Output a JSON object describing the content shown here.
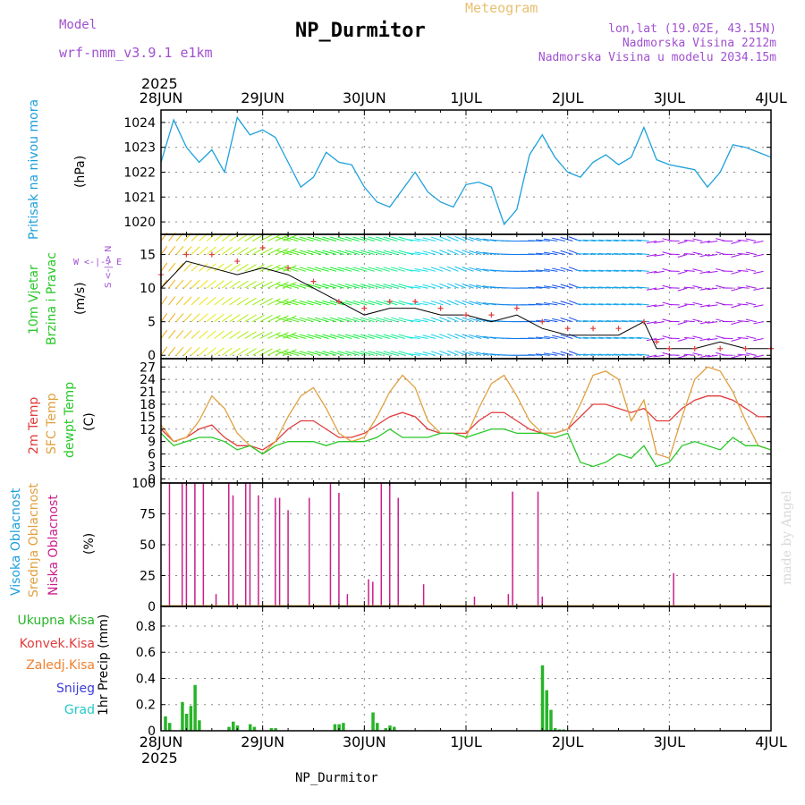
{
  "header": {
    "model_label": "Model",
    "model_name": "wrf-nmm_v3.9.1 e1km",
    "station": "NP_Durmitor",
    "product": "Meteogram",
    "lonlat": "lon,lat (19.02E, 43.15N)",
    "elevation": "Nadmorska Visina 2212m",
    "model_elevation": "Nadmorska Visina u modelu 2034.15m"
  },
  "footer": {
    "station": "NP_Durmitor",
    "credit": "made by Angel"
  },
  "time_axis": {
    "year": "2025",
    "ticks": [
      "28JUN",
      "29JUN",
      "30JUN",
      "1JUL",
      "2JUL",
      "3JUL",
      "4JUL"
    ]
  },
  "panel_labels": {
    "pressure": {
      "name": "Pritisak na nivou mora",
      "unit": "(hPa)"
    },
    "wind": {
      "name1": "10m Vjetar",
      "name2": "Brzina i Pravac",
      "unit": "(m/s)",
      "compass_h": "W <-|-> E",
      "compass_v": "S <-|-> N"
    },
    "temp": {
      "l1": "2m Temp",
      "l2": "SFC Temp",
      "l3": "dewpt Temp",
      "unit": "(C)"
    },
    "cloud": {
      "l1": "Visoka Oblacnost",
      "l2": "Srednja Oblacnost",
      "l3": "Niska Oblacnost",
      "unit": "(%)"
    },
    "precip": {
      "unit": "1hr Precip (mm)",
      "legend": [
        "Ukupna Kisa",
        "Konvek.Kisa",
        "Zaledj.Kisa",
        "Snijeg",
        "Grad"
      ]
    }
  },
  "colors": {
    "pressure": "#1ea0dc",
    "t2m": "#e03c3c",
    "tsfc": "#e0a040",
    "dewpt": "#28c828",
    "low_cloud": "#c81e8c",
    "precip": "#28b428",
    "gust_max": "#e03c3c",
    "wind_speed": "#000000",
    "legend": [
      "#28b428",
      "#e03c3c",
      "#f08030",
      "#3c3cdc",
      "#28c8c8"
    ]
  },
  "chart_data": [
    {
      "type": "line",
      "ylabel": "(hPa)",
      "yticks": [
        1020,
        1021,
        1022,
        1023,
        1024
      ],
      "ylim": [
        1019.5,
        1024.5
      ],
      "x_hours": [
        0,
        3,
        6,
        9,
        12,
        15,
        18,
        21,
        24,
        27,
        30,
        33,
        36,
        39,
        42,
        45,
        48,
        51,
        54,
        57,
        60,
        63,
        66,
        69,
        72,
        75,
        78,
        81,
        84,
        87,
        90,
        93,
        96,
        99,
        102,
        105,
        108,
        111,
        114,
        117,
        120,
        123,
        126,
        129,
        132,
        135,
        138,
        141,
        144
      ],
      "series": [
        {
          "values": [
            1022.4,
            1024.1,
            1023.0,
            1022.4,
            1022.9,
            1022.0,
            1024.2,
            1023.5,
            1023.7,
            1023.4,
            1022.4,
            1021.4,
            1021.8,
            1022.8,
            1022.4,
            1022.3,
            1021.4,
            1020.8,
            1020.6,
            1021.3,
            1022.0,
            1021.2,
            1020.8,
            1020.6,
            1021.5,
            1021.6,
            1021.4,
            1019.9,
            1020.5,
            1022.7,
            1023.5,
            1022.6,
            1022.0,
            1021.8,
            1022.4,
            1022.7,
            1022.3,
            1022.6,
            1023.8,
            1022.5,
            1022.3,
            1022.2,
            1022.1,
            1021.4,
            1022.0,
            1023.1,
            1023.0,
            1022.8,
            1022.6
          ]
        }
      ]
    },
    {
      "type": "line",
      "ylabel": "(m/s)",
      "yticks": [
        0,
        5,
        10,
        15
      ],
      "ylim": [
        -0.5,
        18
      ],
      "x_hours": [
        0,
        6,
        12,
        18,
        24,
        30,
        36,
        42,
        48,
        54,
        60,
        66,
        72,
        78,
        84,
        90,
        96,
        102,
        108,
        114,
        117,
        120,
        126,
        132,
        138,
        144
      ],
      "series": [
        {
          "name": "speed",
          "values": [
            10,
            14,
            13,
            12,
            13,
            12,
            10,
            8,
            6,
            7,
            7,
            6,
            6,
            5,
            6,
            4,
            3,
            3,
            3,
            5,
            1,
            1,
            1,
            2,
            1,
            1
          ]
        },
        {
          "name": "gust",
          "values": [
            12,
            15,
            15,
            14,
            16,
            13,
            11,
            8,
            7,
            8,
            8,
            7,
            6,
            6,
            7,
            5,
            4,
            4,
            4,
            5,
            2,
            1,
            1,
            1,
            1,
            1
          ]
        }
      ]
    },
    {
      "type": "line",
      "ylabel": "(C)",
      "yticks": [
        0,
        3,
        6,
        9,
        12,
        15,
        18,
        21,
        24,
        27
      ],
      "ylim": [
        -1,
        29
      ],
      "x_hours": [
        0,
        3,
        6,
        9,
        12,
        15,
        18,
        21,
        24,
        27,
        30,
        33,
        36,
        39,
        42,
        45,
        48,
        51,
        54,
        57,
        60,
        63,
        66,
        69,
        72,
        75,
        78,
        81,
        84,
        87,
        90,
        93,
        96,
        99,
        102,
        105,
        108,
        111,
        114,
        117,
        120,
        123,
        126,
        129,
        132,
        135,
        138,
        141,
        144
      ],
      "series": [
        {
          "name": "2m Temp",
          "values": [
            12,
            9,
            10,
            12,
            13,
            10,
            8,
            8,
            7,
            9,
            12,
            14,
            14,
            12,
            10,
            10,
            11,
            13,
            15,
            16,
            15,
            12,
            11,
            11,
            11,
            14,
            16,
            16,
            14,
            12,
            11,
            11,
            12,
            15,
            18,
            18,
            17,
            16,
            17,
            14,
            14,
            17,
            19,
            20,
            20,
            19,
            17,
            15,
            15
          ]
        },
        {
          "name": "SFC Temp",
          "values": [
            13,
            9,
            10,
            14,
            20,
            17,
            11,
            8,
            6,
            9,
            15,
            20,
            22,
            17,
            11,
            9,
            10,
            15,
            21,
            25,
            22,
            14,
            11,
            11,
            10,
            17,
            23,
            25,
            20,
            14,
            11,
            11,
            12,
            18,
            25,
            26,
            24,
            14,
            19,
            6,
            5,
            15,
            24,
            27,
            26,
            21,
            14,
            8,
            7
          ]
        },
        {
          "name": "dewpt Temp",
          "values": [
            11,
            8,
            9,
            10,
            10,
            9,
            7,
            8,
            6,
            8,
            9,
            9,
            9,
            8,
            9,
            9,
            9,
            10,
            12,
            10,
            10,
            10,
            11,
            11,
            10,
            11,
            12,
            12,
            11,
            11,
            11,
            10,
            11,
            4,
            3,
            4,
            6,
            5,
            8,
            3,
            4,
            8,
            9,
            8,
            7,
            10,
            8,
            8,
            7
          ]
        }
      ]
    },
    {
      "type": "bar",
      "ylabel": "(%)",
      "yticks": [
        0,
        25,
        50,
        75,
        100
      ],
      "ylim": [
        0,
        100
      ],
      "x_hours": [
        2,
        5,
        6,
        8,
        10,
        13,
        16,
        17,
        20,
        21,
        23,
        27,
        28,
        30,
        35,
        40,
        42,
        44,
        49,
        50,
        52,
        54,
        56,
        62,
        74,
        82,
        83,
        89,
        90,
        121
      ],
      "values": [
        100,
        100,
        100,
        100,
        100,
        10,
        100,
        90,
        100,
        100,
        90,
        88,
        88,
        78,
        88,
        100,
        92,
        10,
        22,
        20,
        100,
        100,
        88,
        18,
        8,
        10,
        93,
        93,
        8,
        27
      ]
    },
    {
      "type": "bar",
      "ylabel": "1hr Precip (mm)",
      "yticks": [
        0,
        0.2,
        0.4,
        0.6,
        0.8
      ],
      "ylim": [
        0,
        0.95
      ],
      "x_hours": [
        1,
        2,
        5,
        6,
        7,
        8,
        9,
        16,
        17,
        18,
        21,
        22,
        26,
        27,
        41,
        42,
        43,
        50,
        51,
        53,
        54,
        55,
        90,
        91,
        92,
        93,
        94,
        95
      ],
      "values": [
        0.11,
        0.06,
        0.22,
        0.13,
        0.19,
        0.35,
        0.08,
        0.03,
        0.07,
        0.04,
        0.05,
        0.03,
        0.02,
        0.02,
        0.05,
        0.05,
        0.06,
        0.14,
        0.06,
        0.02,
        0.04,
        0.03,
        0.5,
        0.31,
        0.16,
        0.02,
        0.01,
        0.01
      ]
    }
  ]
}
